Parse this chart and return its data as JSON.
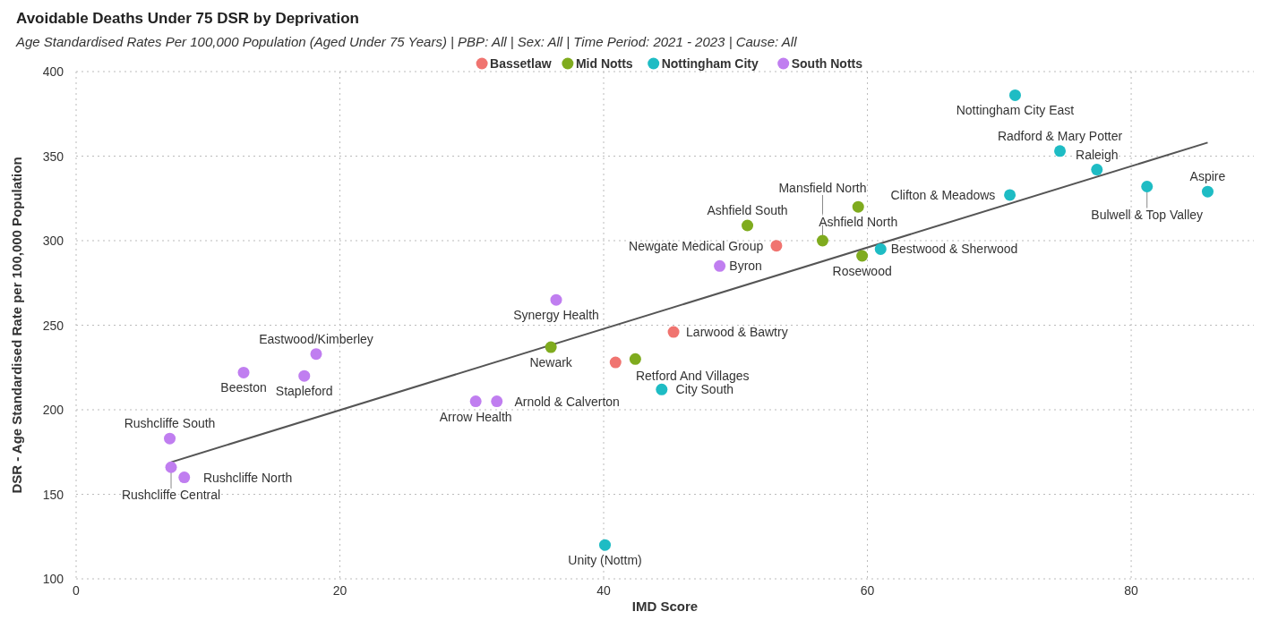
{
  "chart_data": {
    "type": "scatter",
    "title": "Avoidable Deaths Under 75 DSR by Deprivation",
    "subtitle": "Age Standardised Rates Per 100,000 Population (Aged Under 75 Years) | PBP: All | Sex: All | Time Period: 2021 - 2023 | Cause: All",
    "xlabel": "IMD Score",
    "ylabel": "DSR - Age Standardised Rate per 100,000 Population",
    "xlim": [
      0,
      89.3
    ],
    "xticks": [
      0,
      20,
      40,
      60,
      80
    ],
    "ylim": [
      100,
      400
    ],
    "yticks": [
      100,
      150,
      200,
      250,
      300,
      350,
      400
    ],
    "grid": true,
    "legend": "top",
    "marker": "circle",
    "series": [
      {
        "name": "Bassetlaw",
        "color": "#f07470",
        "x": [
          40.9,
          45.3,
          53.1
        ],
        "values": [
          228,
          246,
          297
        ]
      },
      {
        "name": "Mid Notts",
        "color": "#7fab1e",
        "x": [
          36.0,
          42.4,
          50.9,
          59.3,
          56.6,
          59.6
        ],
        "values": [
          237,
          230,
          309,
          320,
          300,
          291
        ]
      },
      {
        "name": "Nottingham City",
        "color": "#1ebcc4",
        "x": [
          40.1,
          44.4,
          61.0,
          70.8,
          71.2,
          74.6,
          77.4,
          81.2,
          85.8
        ],
        "values": [
          120,
          212,
          295,
          327,
          386,
          353,
          342,
          332,
          329
        ]
      },
      {
        "name": "South Notts",
        "color": "#c07ef0",
        "x": [
          7.1,
          7.2,
          8.2,
          12.7,
          17.3,
          18.2,
          30.3,
          31.9,
          36.4,
          48.8
        ],
        "values": [
          183,
          166,
          160,
          222,
          220,
          233,
          205,
          205,
          265,
          285
        ]
      },
      {
        "type": "line",
        "color": "#555555",
        "marker": "none",
        "line_style": "solid",
        "x": [
          7.2,
          85.8
        ],
        "values": [
          169,
          358
        ]
      }
    ],
    "annotations": [
      {
        "text": "Nottingham City East",
        "x": 71.2,
        "y": 386
      },
      {
        "text": "Radford & Mary Potter",
        "x": 74.6,
        "y": 353
      },
      {
        "text": "Raleigh",
        "x": 77.4,
        "y": 342
      },
      {
        "text": "Bulwell & Top Valley",
        "x": 81.2,
        "y": 332
      },
      {
        "text": "Aspire",
        "x": 85.8,
        "y": 329
      },
      {
        "text": "Clifton & Meadows",
        "x": 70.8,
        "y": 327
      },
      {
        "text": "Ashfield North",
        "x": 59.3,
        "y": 320
      },
      {
        "text": "Ashfield South",
        "x": 50.9,
        "y": 309
      },
      {
        "text": "Mansfield North",
        "x": 56.6,
        "y": 300
      },
      {
        "text": "Newgate Medical Group",
        "x": 53.1,
        "y": 297
      },
      {
        "text": "Bestwood & Sherwood",
        "x": 61.0,
        "y": 295
      },
      {
        "text": "Byron",
        "x": 48.8,
        "y": 285
      },
      {
        "text": "Rosewood",
        "x": 59.6,
        "y": 291
      },
      {
        "text": "Synergy Health",
        "x": 36.4,
        "y": 265
      },
      {
        "text": "Larwood & Bawtry",
        "x": 45.3,
        "y": 246
      },
      {
        "text": "Newark",
        "x": 36.0,
        "y": 237
      },
      {
        "text": "Retford And Villages",
        "x": 40.9,
        "y": 228
      },
      {
        "text": "Eastwood/Kimberley",
        "x": 18.2,
        "y": 233
      },
      {
        "text": "Beeston",
        "x": 12.7,
        "y": 222
      },
      {
        "text": "Stapleford",
        "x": 17.3,
        "y": 220
      },
      {
        "text": "Arrow Health",
        "x": 30.3,
        "y": 205
      },
      {
        "text": "Arnold & Calverton",
        "x": 31.9,
        "y": 205
      },
      {
        "text": "City South",
        "x": 44.4,
        "y": 212
      },
      {
        "text": "Rushcliffe South",
        "x": 7.1,
        "y": 183
      },
      {
        "text": "Rushcliffe Central",
        "x": 7.2,
        "y": 166
      },
      {
        "text": "Rushcliffe North",
        "x": 8.2,
        "y": 160
      },
      {
        "text": "Unity (Nottm)",
        "x": 40.1,
        "y": 120
      }
    ]
  }
}
